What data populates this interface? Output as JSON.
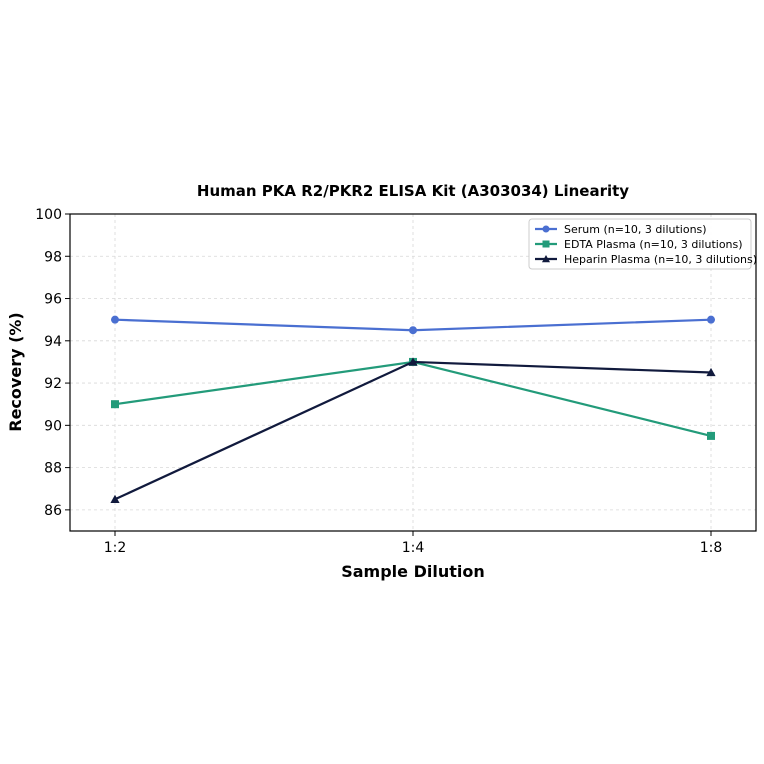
{
  "chart_data": {
    "type": "line",
    "title": "Human PKA R2/PKR2 ELISA Kit (A303034) Linearity",
    "xlabel": "Sample Dilution",
    "ylabel": "Recovery (%)",
    "categories": [
      "1:2",
      "1:4",
      "1:8"
    ],
    "ylim": [
      85,
      100
    ],
    "yticks": [
      86,
      88,
      90,
      92,
      94,
      96,
      98,
      100
    ],
    "grid": true,
    "legend_position": "top-right",
    "series": [
      {
        "name": "Serum (n=10, 3 dilutions)",
        "values": [
          95.0,
          94.5,
          95.0
        ],
        "color": "#4a6fd1",
        "marker": "circle"
      },
      {
        "name": "EDTA Plasma (n=10, 3 dilutions)",
        "values": [
          91.0,
          93.0,
          89.5
        ],
        "color": "#239b7a",
        "marker": "square"
      },
      {
        "name": "Heparin Plasma (n=10, 3 dilutions)",
        "values": [
          86.5,
          93.0,
          92.5
        ],
        "color": "#111a3d",
        "marker": "triangle"
      }
    ]
  }
}
